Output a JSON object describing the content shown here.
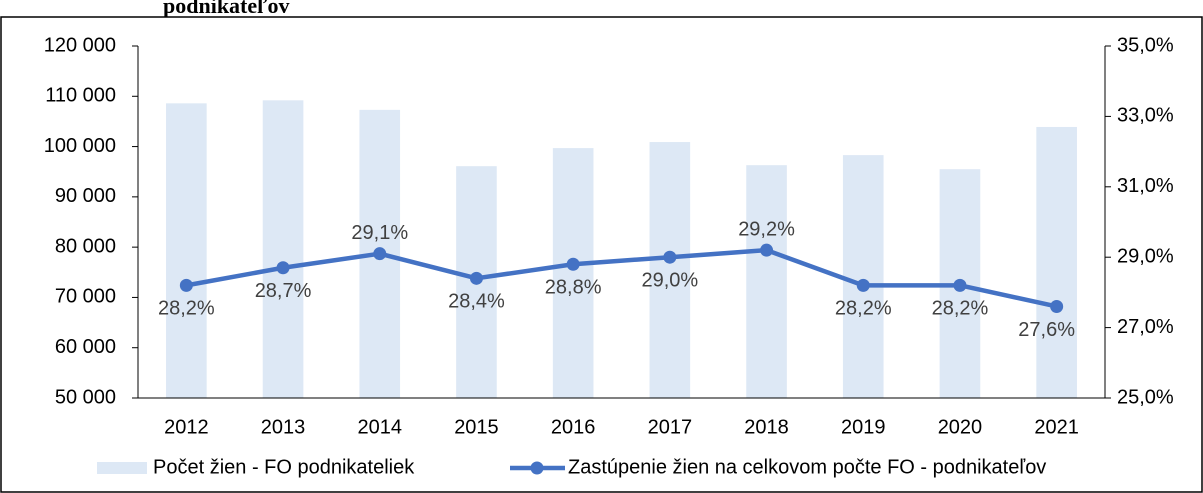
{
  "chart_data": {
    "type": "bar-line",
    "title": "podnikateľov",
    "categories": [
      "2012",
      "2013",
      "2014",
      "2015",
      "2016",
      "2017",
      "2018",
      "2019",
      "2020",
      "2021"
    ],
    "series": [
      {
        "name": "Počet žien - FO podnikateliek",
        "color": "#dde8f5",
        "type": "bar",
        "values": [
          108600,
          109200,
          107300,
          96100,
          99700,
          100900,
          96300,
          98300,
          95500,
          103900
        ]
      },
      {
        "name": "Zastúpenie žien na celkovom počte FO - podnikateľov",
        "color": "#4472c4",
        "type": "line",
        "axis": "y2",
        "values": [
          28.2,
          28.7,
          29.1,
          28.4,
          28.8,
          29.0,
          29.2,
          28.2,
          28.2,
          27.6
        ],
        "value_labels": [
          "28,2%",
          "28,7%",
          "29,1%",
          "28,4%",
          "28,8%",
          "29,0%",
          "29,2%",
          "28,2%",
          "28,2%",
          "27,6%"
        ]
      }
    ],
    "ylim": [
      50000,
      120000
    ],
    "yticks": [
      {
        "value": 50000,
        "label": "50 000"
      },
      {
        "value": 60000,
        "label": "60 000"
      },
      {
        "value": 70000,
        "label": "70 000"
      },
      {
        "value": 80000,
        "label": "80 000"
      },
      {
        "value": 90000,
        "label": "90 000"
      },
      {
        "value": 100000,
        "label": "100 000"
      },
      {
        "value": 110000,
        "label": "110 000"
      },
      {
        "value": 120000,
        "label": "120 000"
      }
    ],
    "y2lim": [
      25,
      35
    ],
    "y2ticks": [
      {
        "value": 25,
        "label": "25,0%"
      },
      {
        "value": 27,
        "label": "27,0%"
      },
      {
        "value": 29,
        "label": "29,0%"
      },
      {
        "value": 31,
        "label": "31,0%"
      },
      {
        "value": 33,
        "label": "33,0%"
      },
      {
        "value": 35,
        "label": "35,0%"
      }
    ],
    "legend": "bottom",
    "grid": false
  }
}
